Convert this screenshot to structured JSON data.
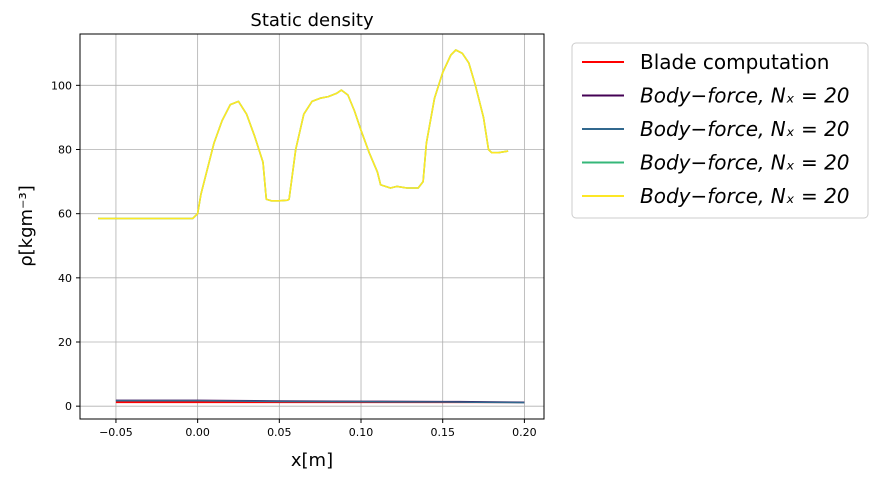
{
  "chart_data": {
    "type": "line",
    "title": "Static density",
    "xlabel": "x[m]",
    "ylabel": "ρ[kgm⁻³]",
    "xlim": [
      -0.072,
      0.212
    ],
    "ylim": [
      -4,
      116
    ],
    "xticks": [
      -0.05,
      0.0,
      0.05,
      0.1,
      0.15,
      0.2
    ],
    "xtick_labels": [
      "−0.05",
      "0.00",
      "0.05",
      "0.10",
      "0.15",
      "0.20"
    ],
    "yticks": [
      0,
      20,
      40,
      60,
      80,
      100
    ],
    "ytick_labels": [
      "0",
      "20",
      "40",
      "60",
      "80",
      "100"
    ],
    "grid": true,
    "legend_position": "outside-right",
    "series": [
      {
        "name": "Blade computation",
        "color": "#ff0000",
        "x": [
          -0.05,
          0.0,
          0.05,
          0.1,
          0.15,
          0.2
        ],
        "y": [
          1.2,
          1.2,
          1.2,
          1.2,
          1.2,
          1.2
        ]
      },
      {
        "name": "Body−force, Nₓ = 20",
        "color": "#440154",
        "x": [
          -0.05,
          0.0,
          0.05,
          0.1,
          0.15,
          0.16,
          0.2
        ],
        "y": [
          1.8,
          1.8,
          1.6,
          1.5,
          1.4,
          1.4,
          1.2
        ]
      },
      {
        "name": "Body−force, Nₓ = 20",
        "color": "#31688e",
        "x": [
          -0.05,
          0.0,
          0.05,
          0.1,
          0.15,
          0.2
        ],
        "y": [
          1.7,
          1.7,
          1.5,
          1.4,
          1.3,
          1.1
        ]
      },
      {
        "name": "Body−force, Nₓ = 20",
        "color": "#35b779",
        "x": [
          -0.061,
          -0.03,
          -0.003,
          0.0,
          0.002,
          0.005,
          0.01,
          0.015,
          0.02,
          0.025,
          0.03,
          0.035,
          0.04,
          0.042,
          0.045,
          0.05,
          0.055,
          0.056,
          0.06,
          0.065,
          0.07,
          0.075,
          0.08,
          0.085,
          0.088,
          0.092,
          0.096,
          0.1,
          0.105,
          0.11,
          0.112,
          0.118,
          0.122,
          0.128,
          0.135,
          0.138,
          0.14,
          0.145,
          0.15,
          0.155,
          0.158,
          0.162,
          0.166,
          0.17,
          0.175,
          0.178,
          0.18,
          0.184,
          0.19
        ],
        "y": [
          58.5,
          58.5,
          58.5,
          60,
          66,
          72,
          82,
          89,
          94,
          95,
          91,
          84,
          76,
          64.5,
          64,
          64,
          64.2,
          64.5,
          80,
          91,
          95,
          96,
          96.5,
          97.5,
          98.5,
          97,
          92,
          86,
          79,
          73,
          69,
          68,
          68.5,
          68,
          68,
          70,
          82,
          96,
          104,
          109.5,
          111,
          110,
          107,
          100,
          90,
          80,
          79,
          79,
          79.5
        ]
      },
      {
        "name": "Body−force, Nₓ = 20",
        "color": "#fde725",
        "x": [
          -0.061,
          -0.03,
          -0.003,
          0.0,
          0.002,
          0.005,
          0.01,
          0.015,
          0.02,
          0.025,
          0.03,
          0.035,
          0.04,
          0.042,
          0.045,
          0.05,
          0.055,
          0.056,
          0.06,
          0.065,
          0.07,
          0.075,
          0.08,
          0.085,
          0.088,
          0.092,
          0.096,
          0.1,
          0.105,
          0.11,
          0.112,
          0.118,
          0.122,
          0.128,
          0.135,
          0.138,
          0.14,
          0.145,
          0.15,
          0.155,
          0.158,
          0.162,
          0.166,
          0.17,
          0.175,
          0.178,
          0.18,
          0.184,
          0.19
        ],
        "y": [
          58.5,
          58.5,
          58.5,
          60,
          66,
          72,
          82,
          89,
          94,
          95,
          91,
          84,
          76,
          64.5,
          64,
          64,
          64.2,
          64.5,
          80,
          91,
          95,
          96,
          96.5,
          97.5,
          98.5,
          97,
          92,
          86,
          79,
          73,
          69,
          68,
          68.5,
          68,
          68,
          70,
          82,
          96,
          104,
          109.5,
          111,
          110,
          107,
          100,
          90,
          80,
          79,
          79,
          79.5
        ]
      }
    ]
  }
}
